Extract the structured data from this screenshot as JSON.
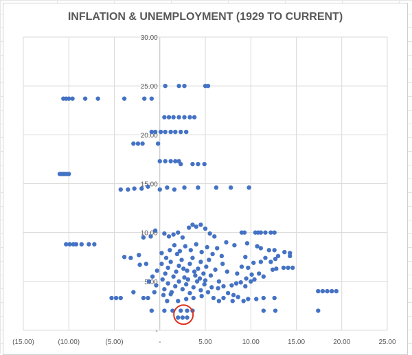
{
  "chart_data": {
    "type": "scatter",
    "title": "INFLATION & UNEMPLOYMENT (1929 TO CURRENT)",
    "xlabel": "",
    "ylabel": "",
    "xlim": [
      -15,
      25
    ],
    "ylim": [
      0,
      30
    ],
    "x_ticks": [
      -15,
      -10,
      -5,
      0,
      5,
      10,
      15,
      20,
      25
    ],
    "x_tick_labels": [
      "(15.00)",
      "(10.00)",
      "(5.00)",
      "-",
      "5.00",
      "10.00",
      "15.00",
      "20.00",
      "25.00"
    ],
    "y_ticks": [
      0,
      5,
      10,
      15,
      20,
      25,
      30
    ],
    "y_tick_labels": [
      "-",
      "5.00",
      "10.00",
      "15.00",
      "20.00",
      "25.00",
      "30.00"
    ],
    "grid": true,
    "marker_color": "#4472C4",
    "highlight_color": "#E0301E",
    "highlight": {
      "x": 2.6,
      "y": 1.6
    },
    "points": [
      [
        0.6,
        25
      ],
      [
        2.1,
        25
      ],
      [
        2.7,
        25
      ],
      [
        5.0,
        25
      ],
      [
        5.3,
        25
      ],
      [
        -10.6,
        23.7
      ],
      [
        -10.3,
        23.7
      ],
      [
        -10,
        23.7
      ],
      [
        -9.6,
        23.7
      ],
      [
        -8.2,
        23.7
      ],
      [
        -6.8,
        23.7
      ],
      [
        -3.9,
        23.7
      ],
      [
        -1.7,
        23.7
      ],
      [
        -0.9,
        23.7
      ],
      [
        0.5,
        21.8
      ],
      [
        1,
        21.8
      ],
      [
        1.5,
        21.8
      ],
      [
        2.1,
        21.8
      ],
      [
        2.7,
        21.8
      ],
      [
        3.3,
        21.8
      ],
      [
        3.8,
        21.8
      ],
      [
        -0.9,
        20.3
      ],
      [
        -0.5,
        20.3
      ],
      [
        0.1,
        20.3
      ],
      [
        0.6,
        20.3
      ],
      [
        1.2,
        20.3
      ],
      [
        1.7,
        20.3
      ],
      [
        2.3,
        20.3
      ],
      [
        2.9,
        20.3
      ],
      [
        -2.9,
        19.1
      ],
      [
        -2.4,
        19.1
      ],
      [
        -1.9,
        19.1
      ],
      [
        -0.2,
        19.1
      ],
      [
        0,
        17.3
      ],
      [
        0.6,
        17.3
      ],
      [
        1.2,
        17.3
      ],
      [
        1.7,
        17.3
      ],
      [
        2.1,
        17.3
      ],
      [
        2.3,
        17.0
      ],
      [
        3.6,
        17.0
      ],
      [
        4.2,
        17.0
      ],
      [
        4.9,
        17.0
      ],
      [
        -11,
        16
      ],
      [
        -10.8,
        16
      ],
      [
        -10.6,
        16
      ],
      [
        -10.4,
        16
      ],
      [
        -10.2,
        16
      ],
      [
        -10,
        16
      ],
      [
        -4.3,
        14.4
      ],
      [
        -3.5,
        14.4
      ],
      [
        -2.8,
        14.5
      ],
      [
        -2,
        14.5
      ],
      [
        -1.3,
        14.7
      ],
      [
        0,
        14.4
      ],
      [
        0.8,
        14.6
      ],
      [
        1.6,
        14.4
      ],
      [
        2.7,
        14.6
      ],
      [
        4.2,
        14.6
      ],
      [
        6.2,
        14.6
      ],
      [
        7.8,
        14.6
      ],
      [
        9.8,
        14.6
      ],
      [
        -10.3,
        8.8
      ],
      [
        -9.9,
        8.8
      ],
      [
        -9.5,
        8.8
      ],
      [
        -9.2,
        8.8
      ],
      [
        -8.6,
        8.8
      ],
      [
        -7.8,
        8.8
      ],
      [
        -7.2,
        8.8
      ],
      [
        17.4,
        4
      ],
      [
        17.9,
        4
      ],
      [
        18.4,
        4
      ],
      [
        18.9,
        4
      ],
      [
        19.4,
        4
      ],
      [
        17.4,
        2
      ],
      [
        11.4,
        2
      ],
      [
        12.7,
        2
      ],
      [
        2.3,
        2
      ],
      [
        3.0,
        2
      ],
      [
        3.6,
        2
      ],
      [
        2.0,
        1.3
      ],
      [
        2.5,
        1.3
      ],
      [
        3.0,
        1.3
      ],
      [
        -0.9,
        2
      ],
      [
        0.5,
        2
      ],
      [
        1.4,
        2
      ],
      [
        -5.3,
        3.3
      ],
      [
        -4.8,
        3.3
      ],
      [
        -4.3,
        3.3
      ],
      [
        -1.8,
        3.3
      ],
      [
        -1.3,
        3.3
      ],
      [
        -2.9,
        3.9
      ],
      [
        -0.6,
        3.9
      ],
      [
        0.4,
        3.6
      ],
      [
        0.8,
        3.0
      ],
      [
        1.2,
        3.7
      ],
      [
        -3.9,
        7.5
      ],
      [
        -3.2,
        7.4
      ],
      [
        -2.2,
        6.7
      ],
      [
        -2.3,
        7.7
      ],
      [
        -1.8,
        9.5
      ],
      [
        -1,
        9.6
      ],
      [
        -0.5,
        10.2
      ],
      [
        -1.5,
        6.8
      ],
      [
        -0.3,
        6.1
      ],
      [
        -0.8,
        5.5
      ],
      [
        -1.2,
        5.0
      ],
      [
        -0.4,
        4.6
      ],
      [
        0.2,
        7.9
      ],
      [
        0.5,
        9.9
      ],
      [
        1.0,
        9.6
      ],
      [
        1.5,
        9.8
      ],
      [
        2.0,
        10.0
      ],
      [
        2.5,
        9.5
      ],
      [
        3.2,
        10.5
      ],
      [
        3.6,
        10.8
      ],
      [
        4.0,
        10.6
      ],
      [
        4.5,
        10.8
      ],
      [
        5.0,
        10.4
      ],
      [
        0.3,
        5.2
      ],
      [
        0.6,
        5.8
      ],
      [
        0.9,
        6.4
      ],
      [
        1.2,
        7.0
      ],
      [
        1.5,
        5.5
      ],
      [
        1.8,
        6.0
      ],
      [
        2.1,
        6.6
      ],
      [
        2.4,
        7.2
      ],
      [
        2.7,
        5.4
      ],
      [
        3.0,
        6.1
      ],
      [
        3.3,
        6.8
      ],
      [
        3.6,
        7.4
      ],
      [
        3.9,
        5.6
      ],
      [
        4.2,
        6.3
      ],
      [
        4.5,
        7.0
      ],
      [
        4.8,
        5.8
      ],
      [
        5.1,
        6.5
      ],
      [
        5.4,
        7.2
      ],
      [
        0.5,
        4.2
      ],
      [
        0.9,
        4.8
      ],
      [
        1.3,
        3.9
      ],
      [
        1.7,
        4.5
      ],
      [
        2.1,
        5.0
      ],
      [
        2.5,
        4.2
      ],
      [
        2.9,
        4.7
      ],
      [
        3.3,
        3.8
      ],
      [
        3.7,
        4.4
      ],
      [
        4.1,
        5.0
      ],
      [
        4.5,
        4.1
      ],
      [
        4.9,
        4.7
      ],
      [
        5.3,
        3.9
      ],
      [
        5.7,
        4.4
      ],
      [
        1.1,
        8.2
      ],
      [
        1.6,
        8.7
      ],
      [
        2.2,
        8.1
      ],
      [
        2.8,
        8.6
      ],
      [
        3.4,
        8.2
      ],
      [
        4.0,
        8.8
      ],
      [
        4.6,
        8.0
      ],
      [
        5.2,
        8.5
      ],
      [
        5.8,
        7.8
      ],
      [
        6.3,
        8.4
      ],
      [
        6.8,
        7.6
      ],
      [
        7.3,
        9.0
      ],
      [
        6.0,
        9.6
      ],
      [
        5.5,
        9.9
      ],
      [
        0.2,
        6.8
      ],
      [
        0.7,
        7.4
      ],
      [
        1.9,
        7.8
      ],
      [
        2.6,
        6.3
      ],
      [
        3.1,
        5.2
      ],
      [
        3.8,
        6.0
      ],
      [
        4.4,
        5.3
      ],
      [
        5.0,
        5.1
      ],
      [
        5.6,
        5.6
      ],
      [
        6.1,
        6.2
      ],
      [
        6.5,
        5.0
      ],
      [
        6.9,
        6.8
      ],
      [
        7.4,
        6.0
      ],
      [
        7.9,
        4.6
      ],
      [
        8.4,
        4.8
      ],
      [
        8.9,
        4.9
      ],
      [
        9.4,
        4.5
      ],
      [
        6.4,
        4.3
      ],
      [
        7.0,
        4.5
      ],
      [
        5.9,
        3.3
      ],
      [
        6.5,
        3.0
      ],
      [
        7.0,
        3.3
      ],
      [
        8.0,
        3.0
      ],
      [
        8.6,
        3.4
      ],
      [
        9.2,
        3.0
      ],
      [
        9.7,
        3.2
      ],
      [
        10.6,
        3.2
      ],
      [
        9.0,
        10.0
      ],
      [
        9.3,
        10.0
      ],
      [
        10.5,
        10.0
      ],
      [
        10.8,
        10.0
      ],
      [
        11.1,
        10.0
      ],
      [
        11.6,
        10.0
      ],
      [
        12.2,
        10.0
      ],
      [
        12.6,
        10.0
      ],
      [
        8.2,
        8.7
      ],
      [
        9.6,
        8.9
      ],
      [
        10.7,
        8.6
      ],
      [
        11.1,
        8.4
      ],
      [
        12.0,
        8.2
      ],
      [
        12.6,
        8.2
      ],
      [
        13.7,
        8.0
      ],
      [
        14.3,
        7.9
      ],
      [
        14.3,
        7.6
      ],
      [
        9.4,
        7.5
      ],
      [
        9.0,
        6.5
      ],
      [
        10.3,
        6.9
      ],
      [
        11.1,
        7.0
      ],
      [
        11.6,
        7.4
      ],
      [
        12.2,
        7.0
      ],
      [
        12.7,
        7.3
      ],
      [
        13.0,
        7.6
      ],
      [
        8.5,
        5.8
      ],
      [
        9.7,
        6.4
      ],
      [
        10.1,
        5.7
      ],
      [
        10.9,
        5.8
      ],
      [
        11.4,
        5.5
      ],
      [
        12.4,
        6.2
      ],
      [
        12.8,
        6.3
      ],
      [
        13.6,
        6.4
      ],
      [
        14.1,
        6.4
      ],
      [
        14.6,
        6.4
      ],
      [
        9.5,
        5.3
      ],
      [
        10.0,
        5.0
      ],
      [
        10.4,
        5.2
      ],
      [
        7.5,
        3.8
      ],
      [
        8.1,
        3.6
      ],
      [
        11.4,
        3.3
      ],
      [
        12.6,
        3.3
      ],
      [
        2.0,
        3.0
      ],
      [
        2.9,
        3.2
      ],
      [
        3.7,
        3.3
      ],
      [
        4.6,
        3.5
      ]
    ]
  }
}
